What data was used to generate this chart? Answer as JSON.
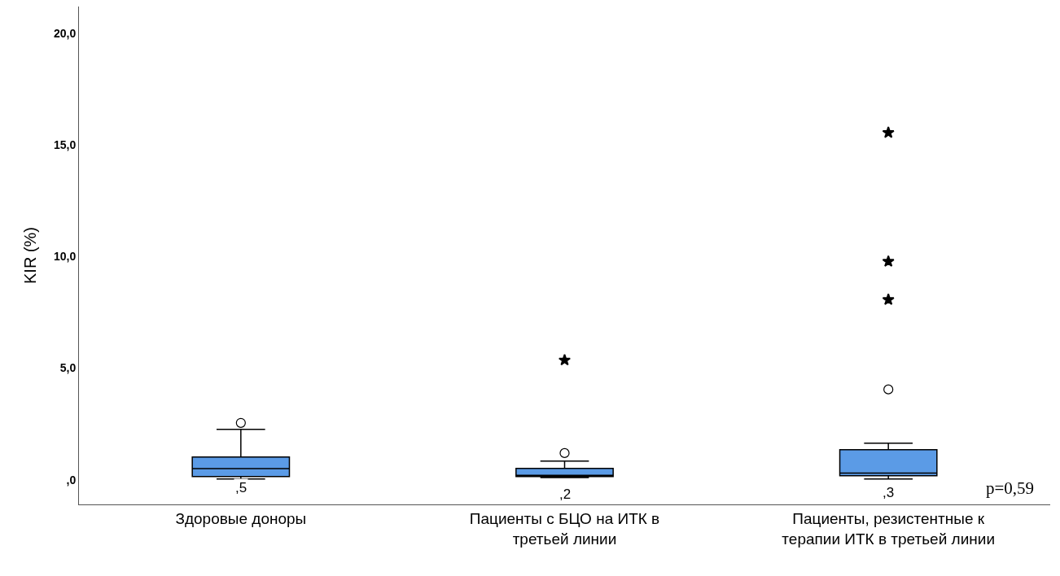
{
  "chart_data": {
    "type": "box",
    "ylabel": "KIR (%)",
    "categories": [
      "Здоровые доноры",
      "Пациенты с БЦО на ИТК в третьей линии",
      "Пациенты, резистентные к терапии ИТК в третьей линии"
    ],
    "series": [
      {
        "color": "#5b9be6",
        "boxes": [
          {
            "low": 0.04,
            "q1": 0.15,
            "median": 0.5,
            "q3": 1.02,
            "high": 2.26,
            "outliers": [
              2.55
            ]
          },
          {
            "low": 0.1,
            "q1": 0.15,
            "median": 0.2,
            "q3": 0.51,
            "high": 0.84,
            "outliers": [
              1.2
            ]
          },
          {
            "low": 0.04,
            "q1": 0.18,
            "median": 0.3,
            "q3": 1.35,
            "high": 1.64,
            "outliers": [
              4.05
            ]
          }
        ]
      },
      {
        "type": "scatter",
        "marker": "star",
        "color": "#000000",
        "x": [
          "Пациенты с БЦО на ИТК в третьей линии",
          "Пациенты, резистентные к терапии ИТК в третьей линии",
          "Пациенты, резистентные к терапии ИТК в третьей линии",
          "Пациенты, резистентные к терапии ИТК в третьей линии"
        ],
        "values": [
          5.36,
          15.55,
          9.78,
          8.07
        ]
      }
    ],
    "annotations": [
      {
        "text": ",5",
        "x": "Здоровые доноры",
        "y": 0.5
      },
      {
        "text": ",2",
        "x": "Пациенты с БЦО на ИТК в третьей линии",
        "y": 0.2
      },
      {
        "text": ",3",
        "x": "Пациенты, резистентные к терапии ИТК в третьей линии",
        "y": 0.3
      },
      "p=0,59"
    ],
    "ylim": [
      -1.1,
      21.2
    ],
    "yticks": [
      {
        "value": 0,
        "label": ",0"
      },
      {
        "value": 5,
        "label": "5,0"
      },
      {
        "value": 10,
        "label": "10,0"
      },
      {
        "value": 15,
        "label": "15,0"
      },
      {
        "value": 20,
        "label": "20,0"
      }
    ]
  }
}
